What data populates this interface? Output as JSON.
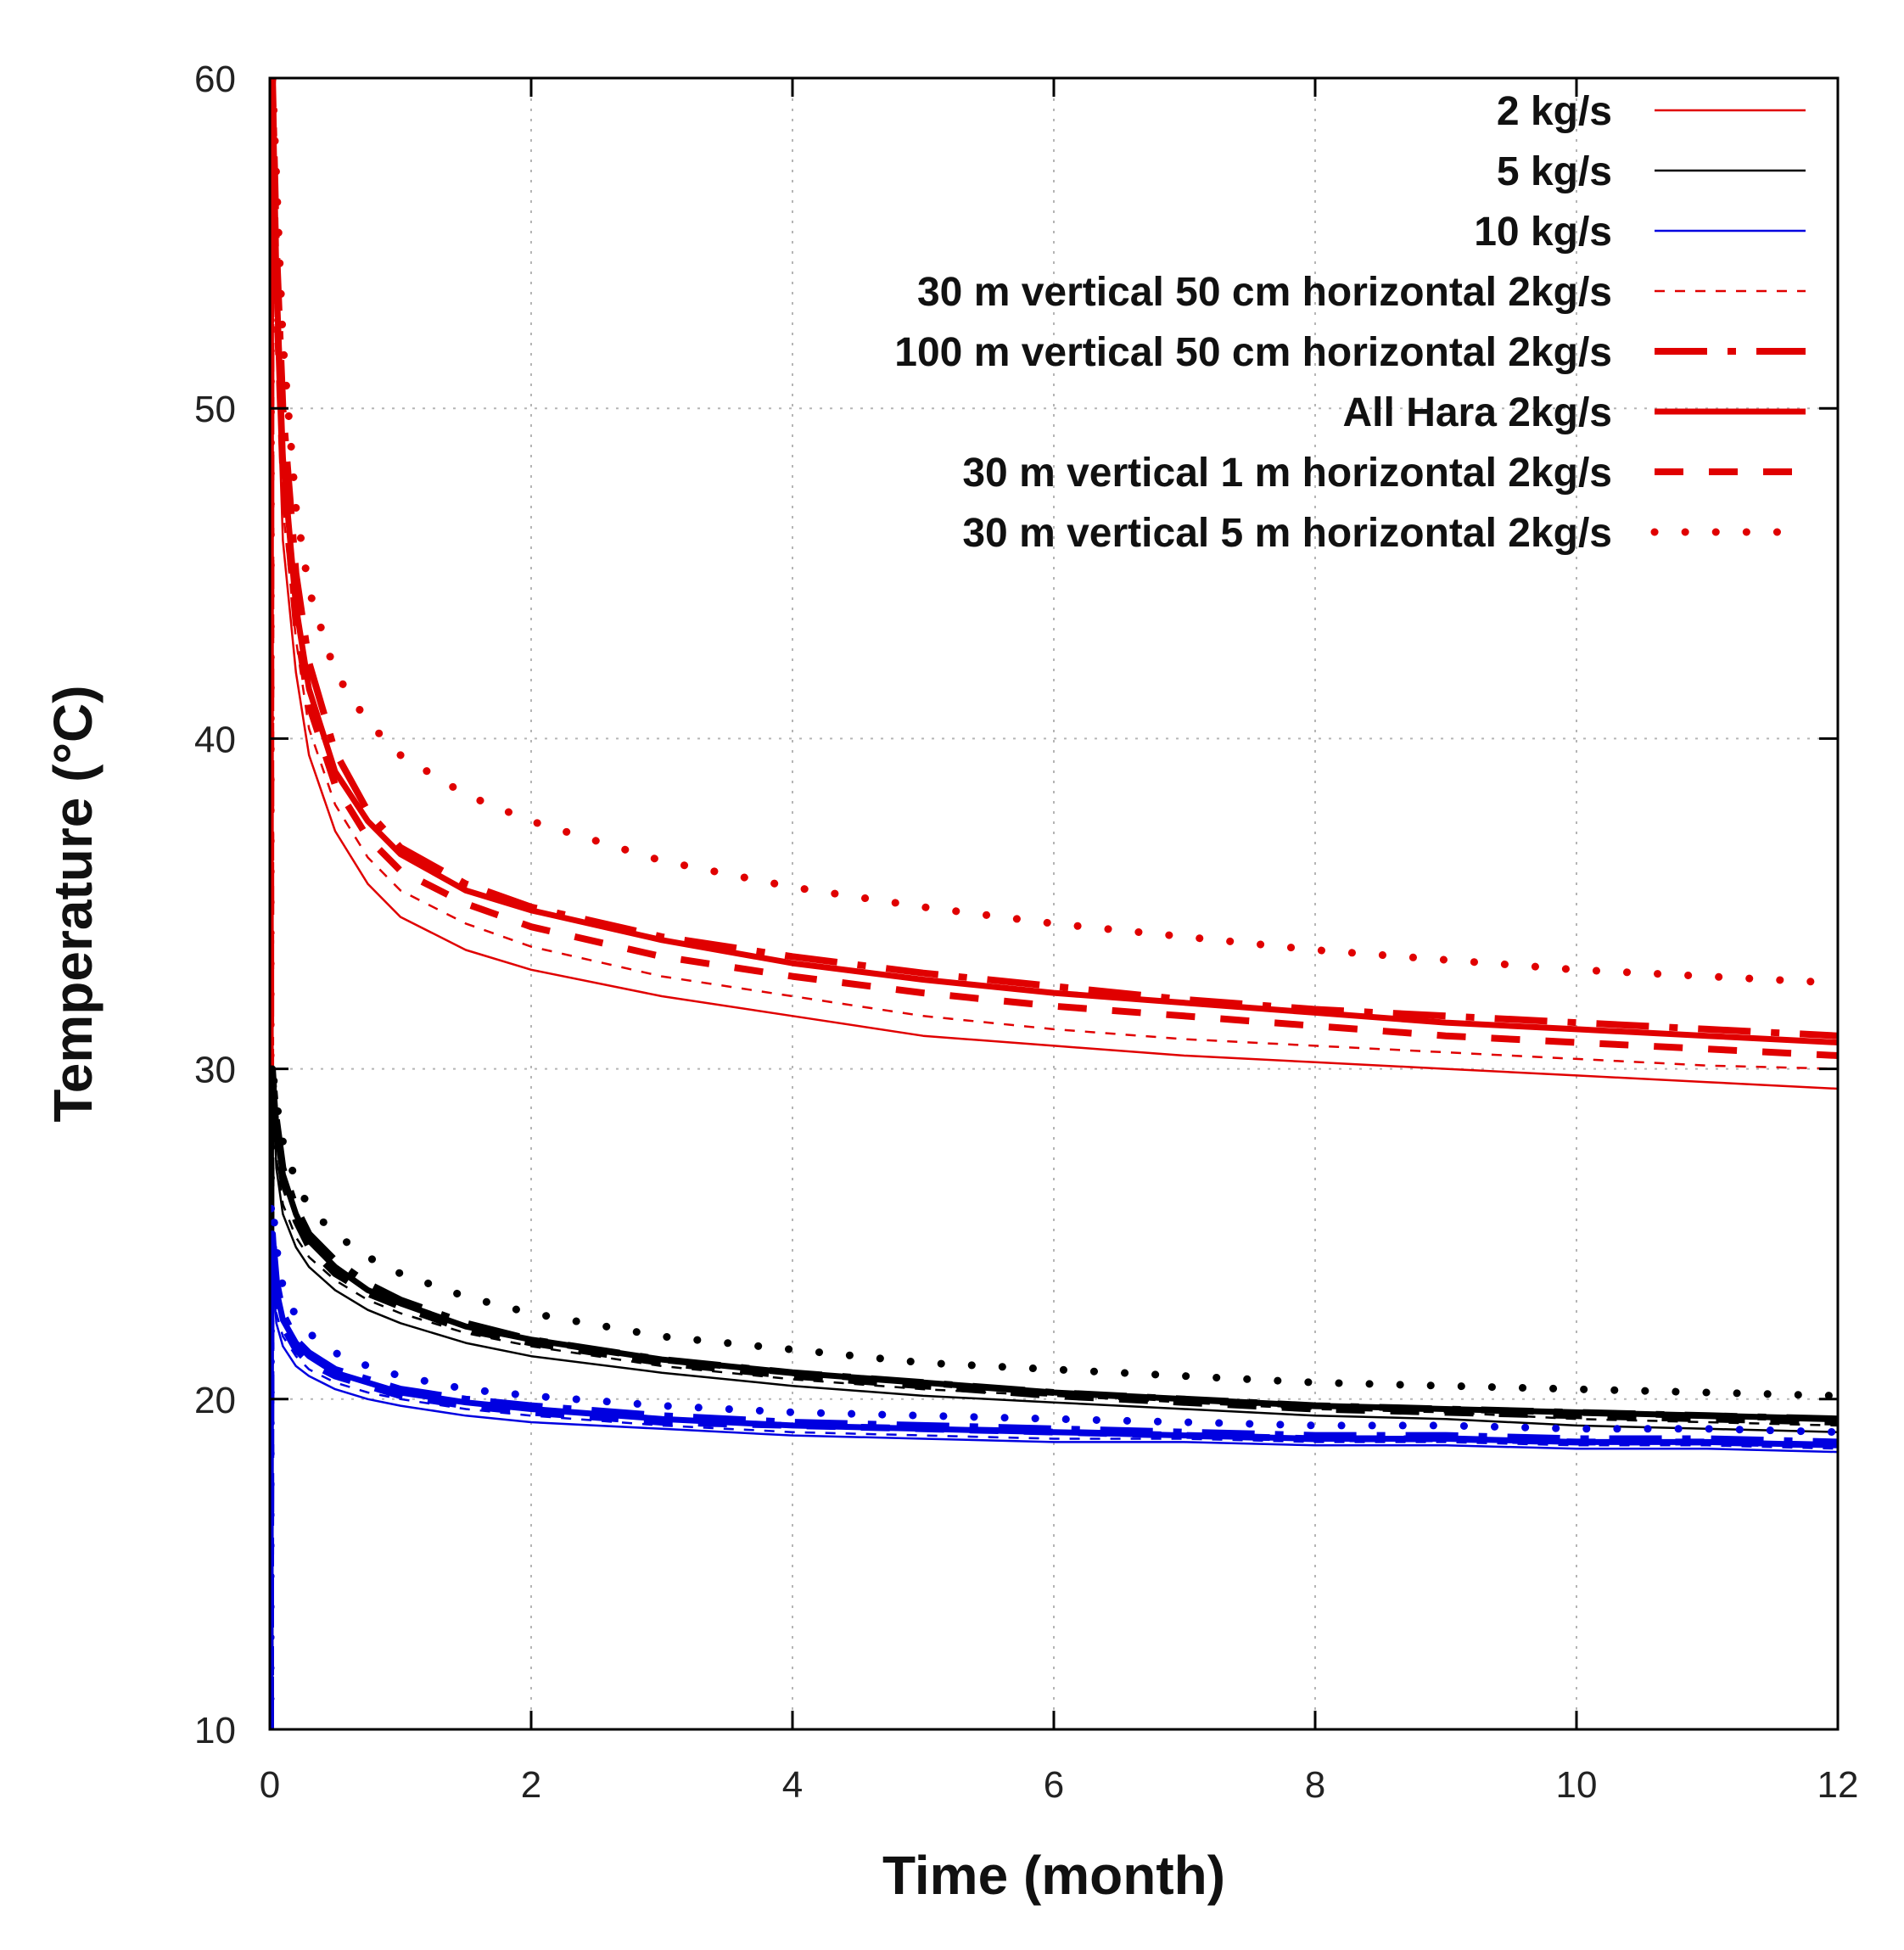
{
  "chart_data": {
    "type": "line",
    "xlabel": "Time (month)",
    "ylabel": "Temperature (°C)",
    "xlim": [
      0,
      12
    ],
    "ylim": [
      10,
      60
    ],
    "xticks": [
      "0",
      "2",
      "4",
      "6",
      "8",
      "10",
      "12"
    ],
    "yticks": [
      "10",
      "20",
      "30",
      "40",
      "50",
      "60"
    ],
    "grid": true,
    "legend_position": "top-right",
    "legend": [
      {
        "label": "2 kg/s",
        "color": "#e00000",
        "style": "thin-solid"
      },
      {
        "label": "5 kg/s",
        "color": "#000000",
        "style": "thin-solid"
      },
      {
        "label": "10 kg/s",
        "color": "#0000e0",
        "style": "thin-solid"
      },
      {
        "label": "30 m vertical 50 cm horizontal 2kg/s",
        "color": "#e00000",
        "style": "thin-dashed"
      },
      {
        "label": "100 m vertical 50 cm horizontal 2kg/s",
        "color": "#e00000",
        "style": "dash-dot"
      },
      {
        "label": "All Hara 2kg/s",
        "color": "#e00000",
        "style": "thick-solid"
      },
      {
        "label": "30 m vertical 1 m horizontal 2kg/s",
        "color": "#e00000",
        "style": "long-dash"
      },
      {
        "label": "30 m vertical 5 m horizontal 2kg/s",
        "color": "#e00000",
        "style": "dotted"
      }
    ],
    "x": [
      0.02,
      0.05,
      0.1,
      0.2,
      0.3,
      0.5,
      0.75,
      1,
      1.5,
      2,
      3,
      4,
      5,
      6,
      7,
      8,
      9,
      10,
      11,
      12
    ],
    "groups": [
      {
        "flow": "2 kg/s",
        "color": "#e00000",
        "curves": [
          {
            "style": "thin-solid",
            "values": [
              60,
              52,
              46,
              42,
              39.5,
              37.2,
              35.6,
              34.6,
              33.6,
              33.0,
              32.2,
              31.6,
              31.0,
              30.7,
              30.4,
              30.2,
              30.0,
              29.8,
              29.6,
              29.4
            ]
          },
          {
            "style": "thin-dashed",
            "values": [
              60,
              53,
              47,
              43,
              40.3,
              38.0,
              36.4,
              35.4,
              34.4,
              33.7,
              32.8,
              32.2,
              31.6,
              31.2,
              30.9,
              30.7,
              30.5,
              30.3,
              30.1,
              30.0
            ]
          },
          {
            "style": "dash-dot",
            "values": [
              60,
              55,
              50,
              45,
              42.3,
              39.6,
              37.8,
              36.7,
              35.6,
              34.9,
              34.0,
              33.4,
              32.9,
              32.5,
              32.1,
              31.8,
              31.6,
              31.4,
              31.2,
              31.0
            ]
          },
          {
            "style": "thick-solid",
            "values": [
              60,
              54,
              48.5,
              44,
              41.5,
              39.0,
              37.5,
              36.5,
              35.4,
              34.8,
              33.9,
              33.2,
              32.7,
              32.3,
              32.0,
              31.7,
              31.4,
              31.2,
              31.0,
              30.8
            ]
          },
          {
            "style": "long-dash",
            "values": [
              60,
              53.5,
              48,
              43.5,
              41.0,
              38.6,
              37.0,
              36.0,
              35.0,
              34.3,
              33.4,
              32.8,
              32.3,
              31.9,
              31.6,
              31.3,
              31.0,
              30.8,
              30.6,
              30.4
            ]
          },
          {
            "style": "dotted",
            "values": [
              60,
              57,
              52,
              47,
              44.5,
              42.0,
              40.5,
              39.5,
              38.3,
              37.5,
              36.3,
              35.5,
              34.9,
              34.4,
              34.0,
              33.6,
              33.3,
              33.0,
              32.8,
              32.6
            ]
          }
        ]
      },
      {
        "flow": "5 kg/s",
        "color": "#000000",
        "curves": [
          {
            "style": "thin-solid",
            "values": [
              30,
              27,
              25.6,
              24.6,
              24.0,
              23.3,
              22.7,
              22.3,
              21.7,
              21.3,
              20.8,
              20.4,
              20.1,
              19.9,
              19.7,
              19.5,
              19.4,
              19.2,
              19.1,
              19.0
            ]
          },
          {
            "style": "thin-dashed",
            "values": [
              30,
              27.3,
              25.9,
              24.9,
              24.3,
              23.6,
              23.0,
              22.6,
              22.0,
              21.6,
              21.0,
              20.6,
              20.3,
              20.1,
              19.9,
              19.7,
              19.6,
              19.4,
              19.3,
              19.2
            ]
          },
          {
            "style": "dash-dot",
            "values": [
              30,
              28.5,
              27,
              25.8,
              25.0,
              24.2,
              23.5,
              23.0,
              22.3,
              21.8,
              21.2,
              20.8,
              20.5,
              20.2,
              20.0,
              19.8,
              19.7,
              19.6,
              19.5,
              19.4
            ]
          },
          {
            "style": "thick-solid",
            "values": [
              30,
              28.2,
              26.8,
              25.6,
              24.8,
              24.0,
              23.3,
              22.9,
              22.2,
              21.8,
              21.2,
              20.8,
              20.5,
              20.2,
              20.0,
              19.8,
              19.7,
              19.6,
              19.5,
              19.4
            ]
          },
          {
            "style": "long-dash",
            "values": [
              30,
              28,
              26.6,
              25.4,
              24.6,
              23.8,
              23.2,
              22.8,
              22.1,
              21.7,
              21.1,
              20.7,
              20.4,
              20.1,
              19.9,
              19.7,
              19.6,
              19.5,
              19.4,
              19.3
            ]
          },
          {
            "style": "dotted",
            "values": [
              30,
              29,
              27.8,
              26.6,
              25.8,
              25.0,
              24.3,
              23.8,
              23.1,
              22.6,
              21.9,
              21.5,
              21.1,
              20.9,
              20.7,
              20.5,
              20.4,
              20.3,
              20.2,
              20.1
            ]
          }
        ]
      },
      {
        "flow": "10 kg/s",
        "color": "#0000e0",
        "curves": [
          {
            "style": "thin-solid",
            "values": [
              24,
              22.3,
              21.6,
              21.0,
              20.7,
              20.3,
              20.0,
              19.8,
              19.5,
              19.3,
              19.1,
              18.9,
              18.8,
              18.7,
              18.7,
              18.6,
              18.6,
              18.5,
              18.5,
              18.4
            ]
          },
          {
            "style": "thin-dashed",
            "values": [
              24,
              22.6,
              21.9,
              21.3,
              20.9,
              20.5,
              20.2,
              20.0,
              19.7,
              19.5,
              19.2,
              19.0,
              18.9,
              18.8,
              18.8,
              18.7,
              18.7,
              18.6,
              18.6,
              18.5
            ]
          },
          {
            "style": "dash-dot",
            "values": [
              25,
              23.6,
              22.6,
              21.8,
              21.4,
              20.9,
              20.6,
              20.3,
              20.0,
              19.8,
              19.5,
              19.3,
              19.2,
              19.1,
              19.0,
              18.9,
              18.9,
              18.8,
              18.8,
              18.7
            ]
          },
          {
            "style": "thick-solid",
            "values": [
              25,
              23.3,
              22.4,
              21.7,
              21.3,
              20.8,
              20.5,
              20.2,
              19.9,
              19.7,
              19.4,
              19.2,
              19.1,
              19.0,
              18.9,
              18.8,
              18.8,
              18.7,
              18.7,
              18.6
            ]
          },
          {
            "style": "long-dash",
            "values": [
              25,
              23.1,
              22.2,
              21.5,
              21.1,
              20.7,
              20.4,
              20.1,
              19.8,
              19.6,
              19.3,
              19.2,
              19.1,
              19.0,
              18.9,
              18.8,
              18.8,
              18.7,
              18.7,
              18.6
            ]
          },
          {
            "style": "dotted",
            "values": [
              26,
              24.6,
              23.4,
              22.5,
              22.0,
              21.4,
              21.0,
              20.7,
              20.3,
              20.1,
              19.8,
              19.6,
              19.5,
              19.4,
              19.3,
              19.2,
              19.2,
              19.1,
              19.1,
              19.0
            ]
          }
        ]
      }
    ]
  }
}
